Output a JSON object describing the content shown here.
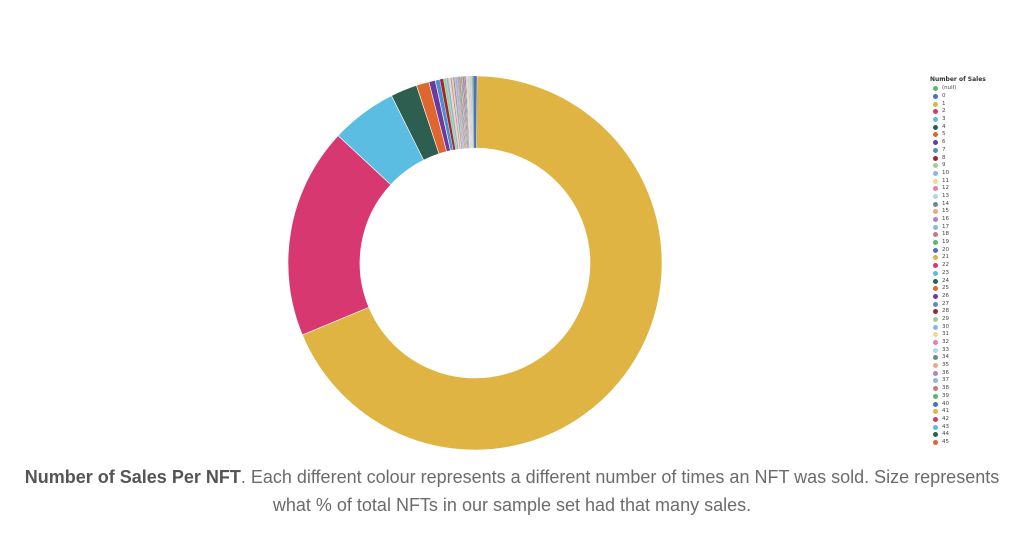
{
  "chart_data": {
    "type": "pie",
    "donut": true,
    "legend_title": "Number of Sales",
    "legend_position": "right",
    "slices": [
      {
        "label": "(null)",
        "value": 0.1,
        "color": "#59b86b"
      },
      {
        "label": "0",
        "value": 0.3,
        "color": "#4a6fc4"
      },
      {
        "label": "1",
        "value": 68.5,
        "color": "#dfb443"
      },
      {
        "label": "2",
        "value": 18.2,
        "color": "#d6386f"
      },
      {
        "label": "3",
        "value": 5.7,
        "color": "#5bbde1"
      },
      {
        "label": "4",
        "value": 2.3,
        "color": "#2e5e4f"
      },
      {
        "label": "5",
        "value": 1.1,
        "color": "#e0662f"
      },
      {
        "label": "6",
        "value": 0.55,
        "color": "#6a3aa0"
      },
      {
        "label": "7",
        "value": 0.4,
        "color": "#4f8fd1"
      },
      {
        "label": "8",
        "value": 0.3,
        "color": "#a3262e"
      },
      {
        "label": "9",
        "value": 0.25,
        "color": "#9fcf9b"
      },
      {
        "label": "10",
        "value": 0.2,
        "color": "#89b6e8"
      },
      {
        "label": "11",
        "value": 0.15,
        "color": "#efd98e"
      },
      {
        "label": "12",
        "value": 0.13,
        "color": "#ea7fa6"
      },
      {
        "label": "13",
        "value": 0.12,
        "color": "#a9d9ef"
      },
      {
        "label": "14",
        "value": 0.1,
        "color": "#6b8c84"
      },
      {
        "label": "15",
        "value": 0.1,
        "color": "#eca786"
      },
      {
        "label": "16",
        "value": 0.09,
        "color": "#a787c7"
      },
      {
        "label": "17",
        "value": 0.09,
        "color": "#8cb5e0"
      },
      {
        "label": "18",
        "value": 0.08,
        "color": "#c37b81"
      },
      {
        "label": "19",
        "value": 0.08,
        "color": "#59b86b"
      },
      {
        "label": "20",
        "value": 0.07,
        "color": "#4a6fc4"
      },
      {
        "label": "21",
        "value": 0.07,
        "color": "#dfb443"
      },
      {
        "label": "22",
        "value": 0.07,
        "color": "#d6386f"
      },
      {
        "label": "23",
        "value": 0.06,
        "color": "#5bbde1"
      },
      {
        "label": "24",
        "value": 0.06,
        "color": "#2e5e4f"
      },
      {
        "label": "25",
        "value": 0.06,
        "color": "#e0662f"
      },
      {
        "label": "26",
        "value": 0.05,
        "color": "#6a3aa0"
      },
      {
        "label": "27",
        "value": 0.05,
        "color": "#4f8fd1"
      },
      {
        "label": "28",
        "value": 0.05,
        "color": "#a3262e"
      },
      {
        "label": "29",
        "value": 0.05,
        "color": "#9fcf9b"
      },
      {
        "label": "30",
        "value": 0.04,
        "color": "#89b6e8"
      },
      {
        "label": "31",
        "value": 0.04,
        "color": "#efd98e"
      },
      {
        "label": "32",
        "value": 0.04,
        "color": "#ea7fa6"
      },
      {
        "label": "33",
        "value": 0.04,
        "color": "#a9d9ef"
      },
      {
        "label": "34",
        "value": 0.04,
        "color": "#6b8c84"
      },
      {
        "label": "35",
        "value": 0.03,
        "color": "#eca786"
      },
      {
        "label": "36",
        "value": 0.03,
        "color": "#a787c7"
      },
      {
        "label": "37",
        "value": 0.03,
        "color": "#8cb5e0"
      },
      {
        "label": "38",
        "value": 0.03,
        "color": "#c37b81"
      },
      {
        "label": "39",
        "value": 0.03,
        "color": "#59b86b"
      },
      {
        "label": "40",
        "value": 0.03,
        "color": "#4a6fc4"
      },
      {
        "label": "41",
        "value": 0.03,
        "color": "#dfb443"
      },
      {
        "label": "42",
        "value": 0.03,
        "color": "#d6386f"
      },
      {
        "label": "43",
        "value": 0.02,
        "color": "#5bbde1"
      },
      {
        "label": "44",
        "value": 0.02,
        "color": "#2e5e4f"
      },
      {
        "label": "45",
        "value": 0.02,
        "color": "#e0662f"
      }
    ]
  },
  "caption": {
    "bold": "Number of Sales Per NFT",
    "text": ". Each different colour represents a different number of times an NFT was sold. Size represents what % of total NFTs in our sample set had that many sales."
  }
}
